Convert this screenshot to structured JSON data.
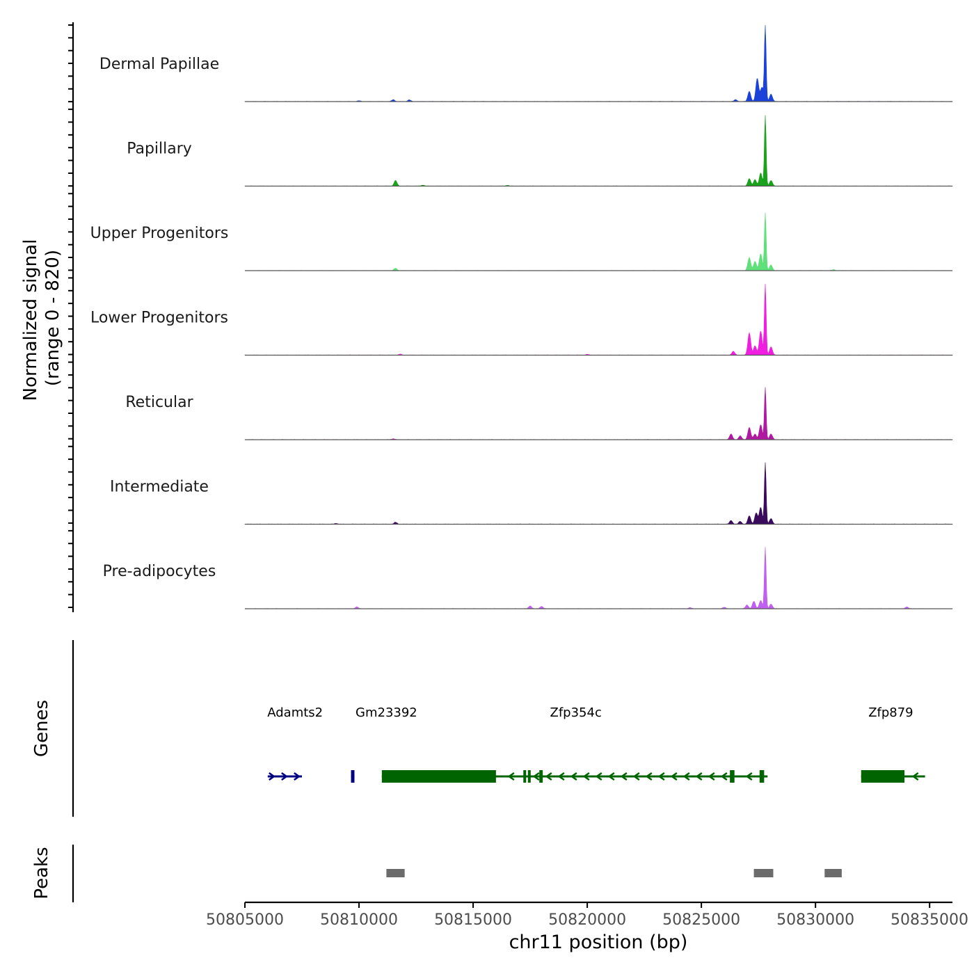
{
  "chart_data": {
    "type": "area",
    "chromosome": "chr11",
    "xlim": [
      50805000,
      50836000
    ],
    "xticks": [
      50805000,
      50810000,
      50815000,
      50820000,
      50825000,
      50830000,
      50835000
    ],
    "xtick_labels": [
      "50805000",
      "50810000",
      "50815000",
      "50820000",
      "50825000",
      "50830000",
      "50835000"
    ],
    "xlabel": "chr11 position (bp)",
    "coverage": {
      "ylabel": "Normalized signal",
      "ylabel_range": "(range 0 - 820)",
      "ylim": [
        0,
        820
      ],
      "tracks": [
        {
          "name": "Dermal Papillae",
          "color": "#1c43d9",
          "peaks": [
            [
              50827100,
              110
            ],
            [
              50827450,
              250
            ],
            [
              50827650,
              150
            ],
            [
              50827800,
              820
            ],
            [
              50828050,
              80
            ],
            [
              50826500,
              20
            ],
            [
              50812200,
              18
            ],
            [
              50811500,
              20
            ],
            [
              50810000,
              8
            ]
          ]
        },
        {
          "name": "Papillary",
          "color": "#1aa31a",
          "peaks": [
            [
              50827100,
              80
            ],
            [
              50827350,
              70
            ],
            [
              50827600,
              140
            ],
            [
              50827800,
              760
            ],
            [
              50828050,
              60
            ],
            [
              50811600,
              60
            ],
            [
              50812800,
              10
            ],
            [
              50816500,
              8
            ]
          ]
        },
        {
          "name": "Upper Progenitors",
          "color": "#5fe07a",
          "peaks": [
            [
              50827100,
              140
            ],
            [
              50827350,
              100
            ],
            [
              50827600,
              180
            ],
            [
              50827800,
              620
            ],
            [
              50828050,
              60
            ],
            [
              50811600,
              25
            ],
            [
              50830800,
              10
            ]
          ]
        },
        {
          "name": "Lower Progenitors",
          "color": "#f01ee0",
          "peaks": [
            [
              50826400,
              40
            ],
            [
              50827100,
              240
            ],
            [
              50827350,
              100
            ],
            [
              50827600,
              260
            ],
            [
              50827800,
              760
            ],
            [
              50828050,
              90
            ],
            [
              50811800,
              10
            ],
            [
              50820000,
              8
            ]
          ]
        },
        {
          "name": "Reticular",
          "color": "#b01aa0",
          "peaks": [
            [
              50826300,
              60
            ],
            [
              50826700,
              40
            ],
            [
              50827100,
              130
            ],
            [
              50827350,
              60
            ],
            [
              50827600,
              160
            ],
            [
              50827800,
              560
            ],
            [
              50828050,
              60
            ],
            [
              50811500,
              10
            ]
          ]
        },
        {
          "name": "Intermediate",
          "color": "#3a0a5c",
          "peaks": [
            [
              50826300,
              40
            ],
            [
              50826700,
              30
            ],
            [
              50827100,
              90
            ],
            [
              50827400,
              120
            ],
            [
              50827600,
              180
            ],
            [
              50827800,
              660
            ],
            [
              50828050,
              60
            ],
            [
              50811600,
              20
            ],
            [
              50809000,
              8
            ]
          ]
        },
        {
          "name": "Pre-adipocytes",
          "color": "#c060f0",
          "peaks": [
            [
              50827000,
              40
            ],
            [
              50827300,
              80
            ],
            [
              50827600,
              90
            ],
            [
              50827800,
              660
            ],
            [
              50828050,
              50
            ],
            [
              50817500,
              30
            ],
            [
              50818000,
              25
            ],
            [
              50809900,
              20
            ],
            [
              50834000,
              20
            ],
            [
              50826000,
              15
            ],
            [
              50824500,
              12
            ]
          ]
        }
      ]
    },
    "genes": {
      "ylabel": "Genes",
      "items": [
        {
          "name": "Adamts2",
          "color": "#000080",
          "start": 50806000,
          "end": 50807500,
          "strand": "+",
          "label_pos": 50807200,
          "exons": []
        },
        {
          "name": "Gm23392",
          "color": "#000080",
          "start": 50809650,
          "end": 50809800,
          "strand": "+",
          "label_pos": 50811200,
          "exons": [
            [
              50809650,
              50809800
            ]
          ]
        },
        {
          "name": "Zfp354c",
          "color": "#006400",
          "start": 50811000,
          "end": 50827900,
          "strand": "-",
          "label_pos": 50819500,
          "exons": [
            [
              50811000,
              50816000
            ],
            [
              50817200,
              50817300
            ],
            [
              50817400,
              50817500
            ],
            [
              50817900,
              50818050
            ],
            [
              50826250,
              50826450
            ],
            [
              50827550,
              50827750
            ]
          ]
        },
        {
          "name": "Zfp879",
          "color": "#006400",
          "start": 50832000,
          "end": 50834800,
          "strand": "-",
          "label_pos": 50833300,
          "exons": [
            [
              50832000,
              50833900
            ]
          ]
        }
      ]
    },
    "peaks": {
      "ylabel": "Peaks",
      "color": "#6b6b6b",
      "regions": [
        [
          50811200,
          50812000
        ],
        [
          50827300,
          50828150
        ],
        [
          50830400,
          50831150
        ]
      ]
    }
  }
}
